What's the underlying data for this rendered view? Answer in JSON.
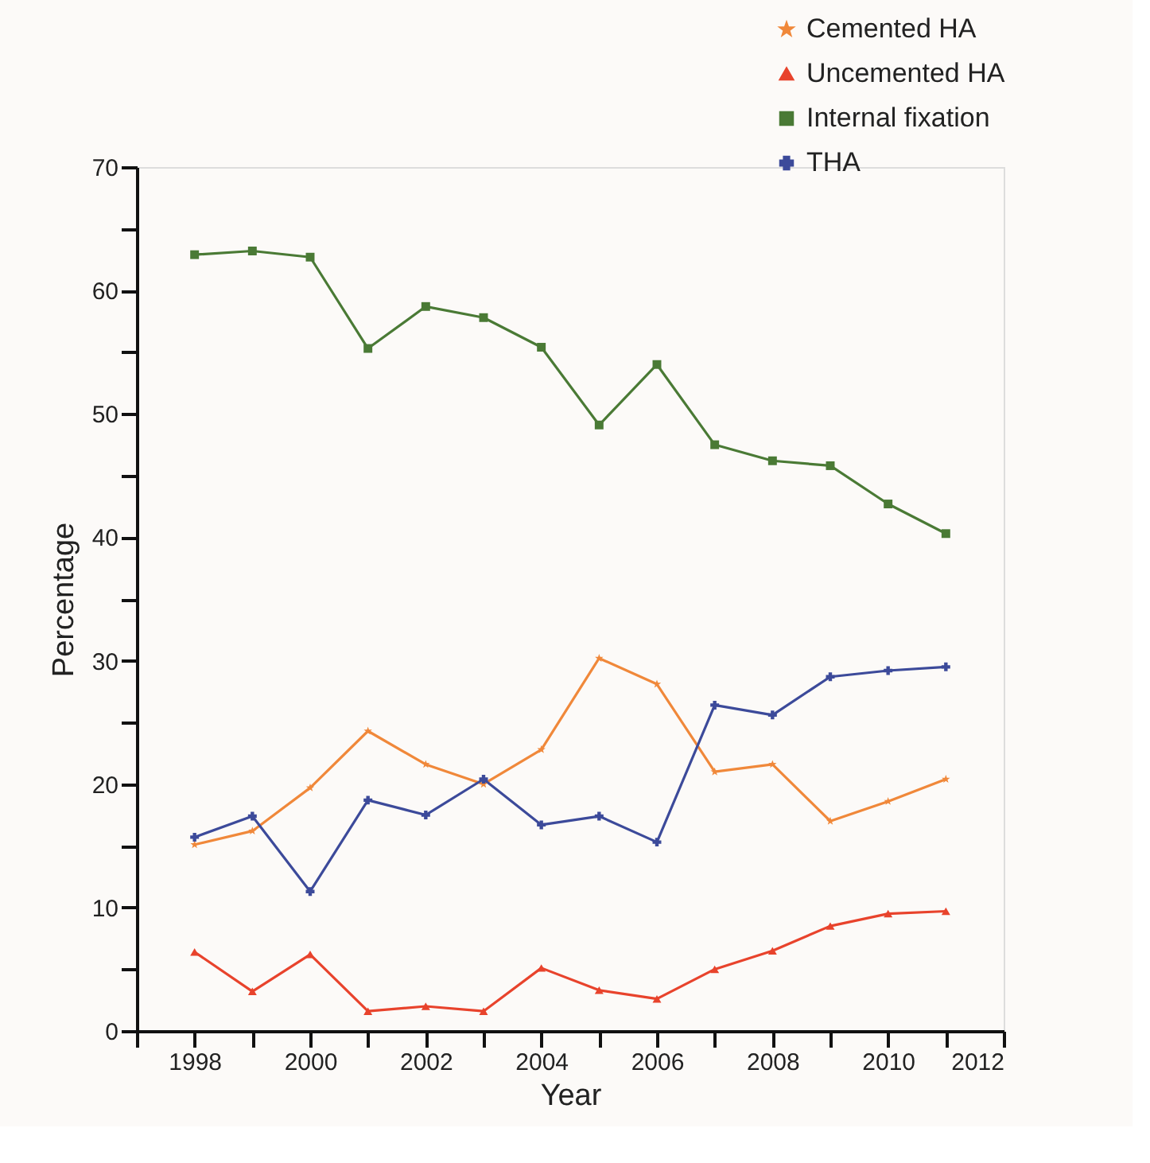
{
  "chart_data": {
    "type": "line",
    "xlabel": "Year",
    "ylabel": "Percentage",
    "x": [
      1998,
      1999,
      2000,
      2001,
      2002,
      2003,
      2004,
      2005,
      2006,
      2007,
      2008,
      2009,
      2010,
      2011
    ],
    "series": [
      {
        "name": "Cemented HA",
        "color": "#f0883a",
        "marker": "star",
        "values": [
          15.1,
          16.2,
          19.7,
          24.3,
          21.6,
          20.0,
          22.8,
          30.2,
          28.1,
          21.0,
          21.6,
          17.0,
          18.6,
          20.4
        ]
      },
      {
        "name": "Uncemented HA",
        "color": "#e8432c",
        "marker": "triangle",
        "values": [
          6.4,
          3.2,
          6.2,
          1.6,
          2.0,
          1.6,
          5.1,
          3.3,
          2.6,
          5.0,
          6.5,
          8.5,
          9.5,
          9.7
        ]
      },
      {
        "name": "Internal fixation",
        "color": "#4a7a35",
        "marker": "square",
        "values": [
          62.9,
          63.2,
          62.7,
          55.3,
          58.7,
          57.8,
          55.4,
          49.1,
          54.0,
          47.5,
          46.2,
          45.8,
          42.7,
          40.3
        ]
      },
      {
        "name": "THA",
        "color": "#3c4a9a",
        "marker": "cross",
        "values": [
          15.7,
          17.4,
          11.3,
          18.7,
          17.5,
          20.4,
          16.7,
          17.4,
          15.3,
          26.4,
          25.6,
          28.7,
          29.2,
          29.5
        ]
      }
    ],
    "xlim": [
      1997,
      2012
    ],
    "xticks": [
      {
        "value": 1997,
        "label": null
      },
      1998,
      {
        "value": 1999,
        "label": null
      },
      2000,
      {
        "value": 2001,
        "label": null
      },
      2002,
      {
        "value": 2003,
        "label": null
      },
      2004,
      {
        "value": 2005,
        "label": null
      },
      2006,
      {
        "value": 2007,
        "label": null
      },
      2008,
      {
        "value": 2009,
        "label": null
      },
      2010,
      {
        "value": 2011,
        "label": null
      },
      2012
    ],
    "ylim": [
      0,
      70
    ],
    "yticks": [
      0,
      {
        "value": 5,
        "label": null
      },
      10,
      {
        "value": 15,
        "label": null
      },
      20,
      {
        "value": 25,
        "label": null
      },
      30,
      {
        "value": 35,
        "label": null
      },
      40,
      {
        "value": 45,
        "label": null
      },
      50,
      {
        "value": 55,
        "label": null
      },
      60,
      {
        "value": 65,
        "label": null
      },
      70
    ],
    "grid": false,
    "legend": "top right",
    "line_style": "solid"
  }
}
